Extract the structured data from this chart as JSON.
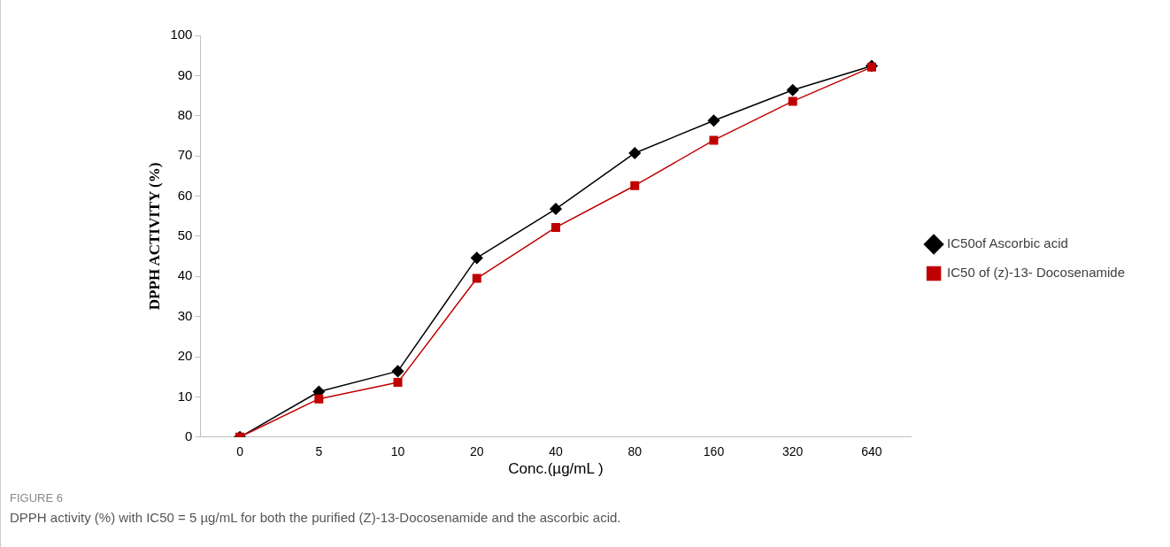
{
  "chart_data": {
    "type": "line",
    "xlabel": "Conc.(µg/mL )",
    "ylabel": "DPPH ACTIVITY (%)",
    "categories": [
      "0",
      "5",
      "10",
      "20",
      "40",
      "80",
      "160",
      "320",
      "640"
    ],
    "series": [
      {
        "name": "IC50of Ascorbic acid",
        "color": "#000000",
        "marker": "diamond",
        "values": [
          0,
          11.3,
          16.4,
          44.6,
          56.8,
          70.7,
          78.8,
          86.4,
          92.4
        ]
      },
      {
        "name": "IC50 of (z)-13- Docosenamide",
        "color": "#c00000",
        "marker": "square",
        "values": [
          0,
          9.5,
          13.6,
          39.5,
          52.2,
          62.6,
          73.9,
          83.6,
          92.1
        ]
      }
    ],
    "ylim": [
      0,
      100
    ],
    "yticks": [
      0,
      10,
      20,
      30,
      40,
      50,
      60,
      70,
      80,
      90,
      100
    ],
    "grid": false,
    "legend": "right",
    "line_style": "solid",
    "annotations": [
      "FIGURE 6",
      "DPPH activity (%) with IC50 = 5 µg/mL for both the purified (Z)-13-Docosenamide and the ascorbic acid."
    ]
  }
}
